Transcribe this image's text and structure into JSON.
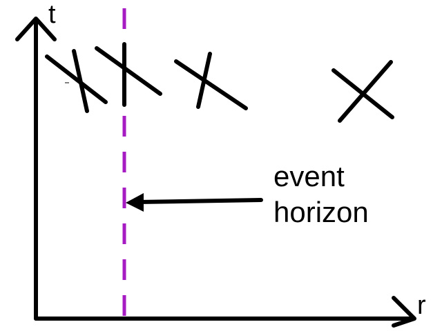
{
  "diagram": {
    "axes": {
      "vertical_label": "t",
      "horizontal_label": "r"
    },
    "annotation": {
      "line1": "event",
      "line2": "horizon"
    },
    "colors": {
      "ink": "#000000",
      "horizon_line": "#a61cc2",
      "background": "#ffffff"
    },
    "light_cone_count": 4
  }
}
